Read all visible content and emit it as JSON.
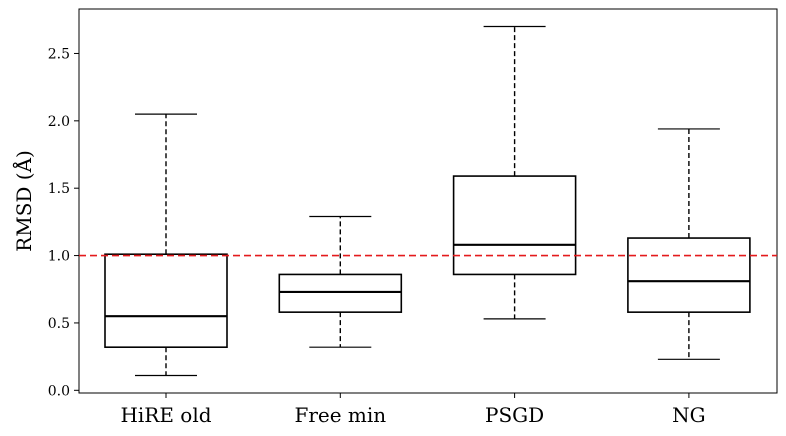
{
  "chart_data": {
    "type": "box",
    "ylabel": "RMSD (Å)",
    "ylim": [
      -0.02,
      2.83
    ],
    "yticks": [
      0.0,
      0.5,
      1.0,
      1.5,
      2.0,
      2.5
    ],
    "ytick_labels": [
      "0.0",
      "0.5",
      "1.0",
      "1.5",
      "2.0",
      "2.5"
    ],
    "categories": [
      "HiRE old",
      "Free min",
      "PSGD",
      "NG"
    ],
    "boxes": [
      {
        "category": "HiRE old",
        "whisker_low": 0.11,
        "q1": 0.32,
        "median": 0.55,
        "q3": 1.01,
        "whisker_high": 2.05
      },
      {
        "category": "Free min",
        "whisker_low": 0.32,
        "q1": 0.58,
        "median": 0.73,
        "q3": 0.86,
        "whisker_high": 1.29
      },
      {
        "category": "PSGD",
        "whisker_low": 0.53,
        "q1": 0.86,
        "median": 1.08,
        "q3": 1.59,
        "whisker_high": 2.7
      },
      {
        "category": "NG",
        "whisker_low": 0.23,
        "q1": 0.58,
        "median": 0.81,
        "q3": 1.13,
        "whisker_high": 1.94
      }
    ],
    "reference_line": {
      "y": 1.0,
      "color": "#e41a1c",
      "style": "dashed"
    },
    "grid": false,
    "legend": "none"
  }
}
